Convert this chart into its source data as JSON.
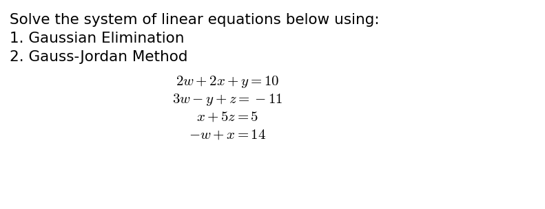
{
  "background_color": "#ffffff",
  "title_line": "Solve the system of linear equations below using:",
  "item1": "1. Gaussian Elimination",
  "item2": "2. Gauss-Jordan Method",
  "eq1": "$2w + 2x + y = 10$",
  "eq2": "$3w - y + z = -11$",
  "eq3": "$x + 5z = 5$",
  "eq4": "$-w + x = 14$",
  "text_color": "#000000",
  "title_fontsize": 15.5,
  "item_fontsize": 15.5,
  "eq_fontsize": 15,
  "fig_width": 7.91,
  "fig_height": 3.04,
  "dpi": 100
}
